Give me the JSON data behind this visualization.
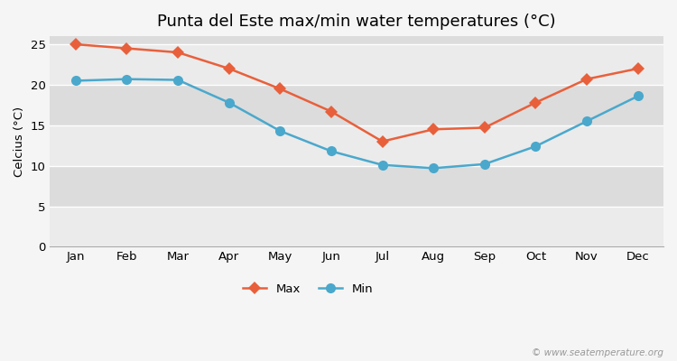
{
  "title": "Punta del Este max/min water temperatures (°C)",
  "ylabel": "Celcius (°C)",
  "months": [
    "Jan",
    "Feb",
    "Mar",
    "Apr",
    "May",
    "Jun",
    "Jul",
    "Aug",
    "Sep",
    "Oct",
    "Nov",
    "Dec"
  ],
  "max_temps": [
    25.0,
    24.5,
    24.0,
    22.0,
    19.5,
    16.7,
    13.0,
    14.5,
    14.7,
    17.8,
    20.7,
    22.0
  ],
  "min_temps": [
    20.5,
    20.7,
    20.6,
    17.8,
    14.3,
    11.8,
    10.1,
    9.7,
    10.2,
    12.4,
    15.5,
    18.6
  ],
  "max_color": "#e8603b",
  "min_color": "#4aa8cc",
  "figure_bg": "#f5f5f5",
  "band_light": "#ebebeb",
  "band_dark": "#dcdcdc",
  "watermark": "© www.seatemperature.org",
  "legend_labels": [
    "Max",
    "Min"
  ],
  "title_fontsize": 13,
  "label_fontsize": 9.5,
  "tick_fontsize": 9.5,
  "linewidth": 1.8,
  "max_markersize": 7,
  "min_markersize": 8,
  "ylim": [
    0,
    26
  ],
  "yticks": [
    0,
    5,
    10,
    15,
    20,
    25
  ]
}
